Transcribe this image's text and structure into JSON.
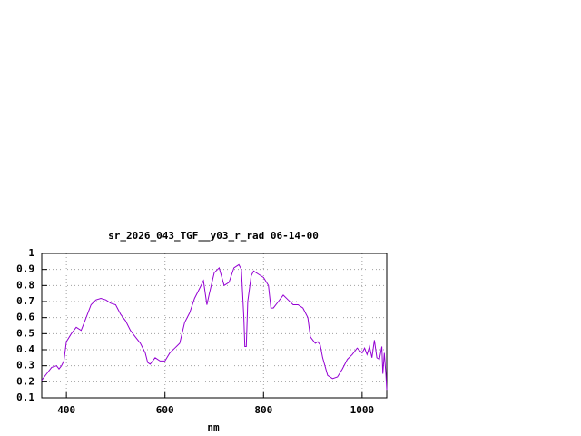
{
  "chart_data": {
    "type": "line",
    "title": "sr_2026_043_TGF__y03_r_rad 06-14-00",
    "x_label": "nm",
    "xlim": [
      350,
      1050
    ],
    "ylim": [
      0.1,
      1
    ],
    "xticks": [
      400,
      600,
      800,
      1000
    ],
    "yticks": [
      0.1,
      0.2,
      0.3,
      0.4,
      0.5,
      0.6,
      0.7,
      0.8,
      0.9,
      1
    ],
    "grid": true,
    "series": [
      {
        "color": "#9400d3",
        "x": [
          350,
          360,
          370,
          380,
          385,
          390,
          395,
          400,
          410,
          420,
          430,
          440,
          450,
          460,
          470,
          480,
          490,
          500,
          510,
          520,
          530,
          540,
          550,
          560,
          565,
          570,
          580,
          590,
          600,
          610,
          620,
          630,
          640,
          650,
          660,
          670,
          678,
          685,
          690,
          700,
          710,
          720,
          730,
          740,
          750,
          755,
          760,
          762,
          765,
          768,
          775,
          780,
          790,
          800,
          810,
          815,
          820,
          830,
          840,
          850,
          860,
          870,
          880,
          890,
          895,
          900,
          905,
          910,
          915,
          920,
          930,
          940,
          950,
          960,
          970,
          980,
          990,
          1000,
          1005,
          1010,
          1015,
          1020,
          1025,
          1030,
          1035,
          1040,
          1042,
          1045,
          1048,
          1050
        ],
        "values": [
          0.21,
          0.25,
          0.29,
          0.3,
          0.28,
          0.3,
          0.33,
          0.45,
          0.5,
          0.54,
          0.52,
          0.6,
          0.68,
          0.71,
          0.72,
          0.71,
          0.69,
          0.68,
          0.62,
          0.58,
          0.52,
          0.48,
          0.44,
          0.38,
          0.32,
          0.31,
          0.35,
          0.33,
          0.33,
          0.38,
          0.41,
          0.44,
          0.57,
          0.63,
          0.72,
          0.78,
          0.83,
          0.68,
          0.75,
          0.88,
          0.91,
          0.8,
          0.82,
          0.91,
          0.93,
          0.9,
          0.6,
          0.42,
          0.42,
          0.7,
          0.86,
          0.89,
          0.87,
          0.85,
          0.8,
          0.66,
          0.66,
          0.7,
          0.74,
          0.71,
          0.68,
          0.68,
          0.66,
          0.6,
          0.48,
          0.46,
          0.44,
          0.45,
          0.43,
          0.35,
          0.24,
          0.22,
          0.23,
          0.28,
          0.34,
          0.37,
          0.41,
          0.38,
          0.41,
          0.37,
          0.42,
          0.35,
          0.46,
          0.35,
          0.34,
          0.42,
          0.25,
          0.38,
          0.26,
          0.15
        ]
      }
    ]
  }
}
